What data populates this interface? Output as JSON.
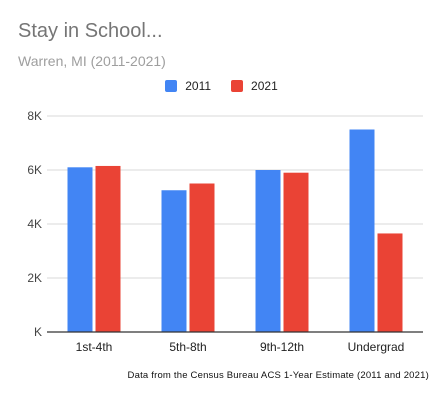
{
  "title": "Stay in School...",
  "subtitle": "Warren, MI (2011-2021)",
  "footnote": "Data from the Census Bureau ACS 1-Year Estimate (2011 and 2021)",
  "colors": {
    "s2011": "#4285f4",
    "s2021": "#ea4335",
    "grid": "#d9d9d9",
    "axis": "#333333",
    "tick": "#444444"
  },
  "chart_data": {
    "type": "bar",
    "categories": [
      "1st-4th",
      "5th-8th",
      "9th-12th",
      "Undergrad"
    ],
    "series": [
      {
        "name": "2011",
        "values": [
          6100,
          5250,
          6000,
          7500
        ]
      },
      {
        "name": "2021",
        "values": [
          6150,
          5500,
          5900,
          3650
        ]
      }
    ],
    "yticks": [
      0,
      2000,
      4000,
      6000,
      8000
    ],
    "ytick_labels": [
      "K",
      "2K",
      "4K",
      "6K",
      "8K"
    ],
    "ylim": [
      0,
      8000
    ],
    "grid": true,
    "legend_position": "top"
  }
}
